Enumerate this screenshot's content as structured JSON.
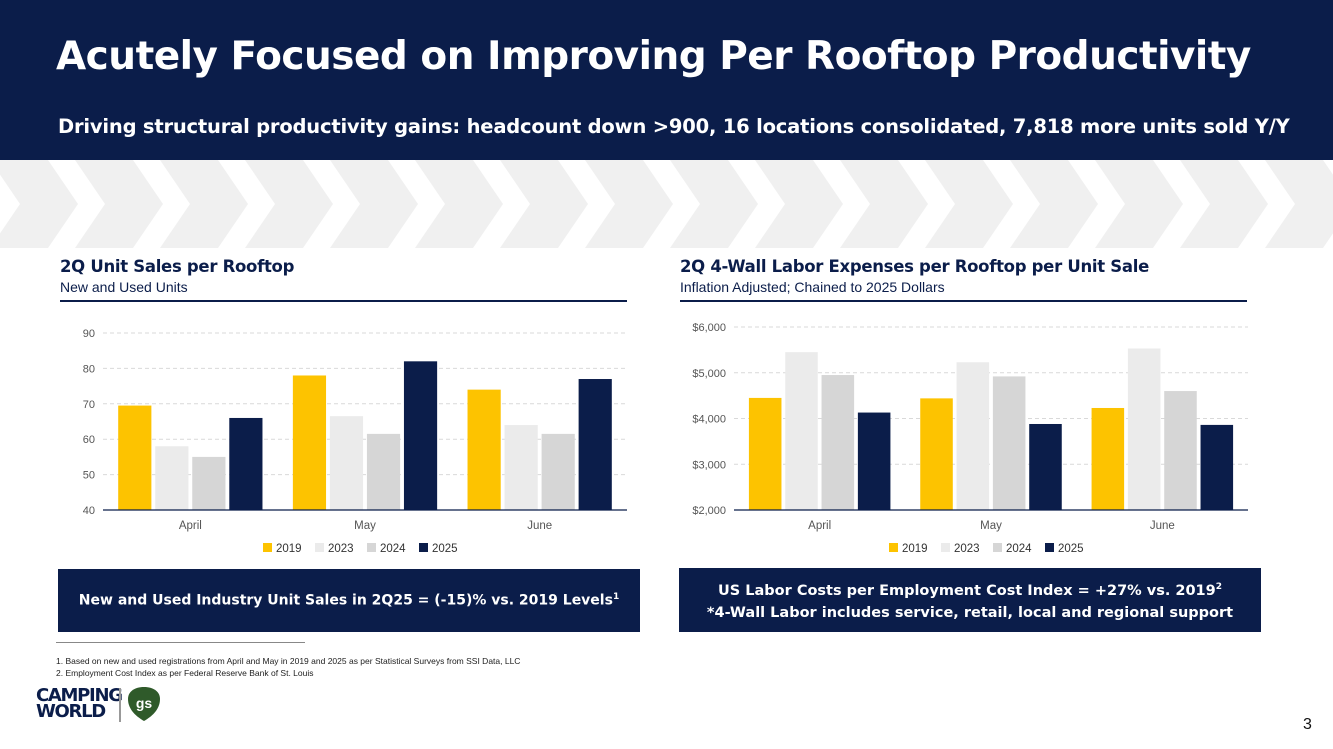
{
  "header": {
    "title": "Acutely Focused on Improving Per Rooftop Productivity",
    "subtitle": "Driving structural productivity gains: headcount down >900, 16 locations consolidated, 7,818 more units sold Y/Y"
  },
  "chart_data": [
    {
      "type": "bar",
      "title": "2Q Unit Sales per Rooftop",
      "subtitle": "New and Used Units",
      "categories": [
        "April",
        "May",
        "June"
      ],
      "series": [
        {
          "name": "2019",
          "color": "#fdc300",
          "values": [
            69.5,
            78.0,
            74.0
          ]
        },
        {
          "name": "2023",
          "color": "#ebebeb",
          "values": [
            58.0,
            66.5,
            64.0
          ]
        },
        {
          "name": "2024",
          "color": "#d6d6d6",
          "values": [
            55.0,
            61.5,
            61.5
          ]
        },
        {
          "name": "2025",
          "color": "#0b1d4a",
          "values": [
            66.0,
            82.0,
            77.0
          ]
        }
      ],
      "ylim": [
        40,
        90
      ],
      "yticks": [
        40,
        50,
        60,
        70,
        80,
        90
      ],
      "ytick_labels": [
        "40",
        "50",
        "60",
        "70",
        "80",
        "90"
      ],
      "grid": true,
      "legend": "bottom"
    },
    {
      "type": "bar",
      "title": "2Q 4-Wall Labor Expenses per Rooftop per Unit Sale",
      "subtitle": "Inflation Adjusted; Chained to 2025 Dollars",
      "categories": [
        "April",
        "May",
        "June"
      ],
      "series": [
        {
          "name": "2019",
          "color": "#fdc300",
          "values": [
            4450,
            4440,
            4230
          ]
        },
        {
          "name": "2023",
          "color": "#ebebeb",
          "values": [
            5450,
            5230,
            5530
          ]
        },
        {
          "name": "2024",
          "color": "#d6d6d6",
          "values": [
            4950,
            4920,
            4600
          ]
        },
        {
          "name": "2025",
          "color": "#0b1d4a",
          "values": [
            4130,
            3880,
            3860
          ]
        }
      ],
      "ylim": [
        2000,
        6000
      ],
      "yticks": [
        2000,
        3000,
        4000,
        5000,
        6000
      ],
      "ytick_labels": [
        "$2,000",
        "$3,000",
        "$4,000",
        "$5,000",
        "$6,000"
      ],
      "grid": true,
      "legend": "bottom"
    }
  ],
  "callouts": {
    "left_text": "New and Used Industry Unit Sales in 2Q25 = (-15)% vs. 2019 Levels",
    "left_sup": "1",
    "right_line1": "US Labor Costs per Employment Cost Index = +27% vs. 2019",
    "right_line1_sup": "2",
    "right_line2": "*4-Wall Labor includes service, retail, local and regional support"
  },
  "footnotes": [
    "1. Based on new and used registrations from April and May in 2019 and 2025 as per Statistical Surveys from SSI Data, LLC",
    "2. Employment Cost Index as per Federal Reserve Bank of St. Louis"
  ],
  "logo": {
    "line1": "CAMPING",
    "line2": "WORLD",
    "badge": "gs"
  },
  "page_number": "3",
  "colors": {
    "navy": "#0b1d4a",
    "gold": "#fdc300",
    "chevron": "#f0f0f0"
  }
}
